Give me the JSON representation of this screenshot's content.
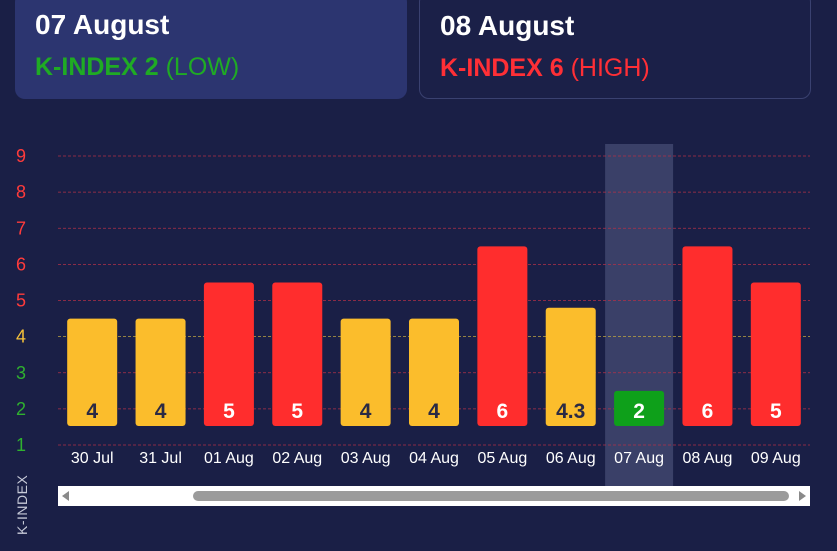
{
  "cards": [
    {
      "date": "07 August",
      "k_label": "K-INDEX 2",
      "level": "(LOW)",
      "color": "#1fab24"
    },
    {
      "date": "08 August",
      "k_label": "K-INDEX 6",
      "level": "(HIGH)",
      "color": "#ff2f36"
    }
  ],
  "chart_data": {
    "type": "bar",
    "ylabel": "K-INDEX",
    "ylim": [
      1,
      9
    ],
    "yticks": [
      1,
      2,
      3,
      4,
      5,
      6,
      7,
      8,
      9
    ],
    "categories": [
      "30 Jul",
      "31 Jul",
      "01 Aug",
      "02 Aug",
      "03 Aug",
      "04 Aug",
      "05 Aug",
      "06 Aug",
      "07 Aug",
      "08 Aug",
      "09 Aug"
    ],
    "values": [
      4,
      4,
      5,
      5,
      4,
      4,
      6,
      4.3,
      2,
      6,
      5
    ],
    "highlighted_category": "07 Aug",
    "threshold_line": 4,
    "grid": true,
    "colors": {
      "low": "#0ea01a",
      "moderate": "#fbbd2c",
      "high": "#ff2d2d",
      "tick_low": "#2fb12f",
      "tick_moderate": "#f5c13a",
      "tick_high": "#ff3b3b",
      "grid": "#b03048",
      "threshold": "#bda441",
      "highlight": "#3a4068"
    }
  },
  "scrollbar": {
    "label": "horizontal-scrollbar"
  }
}
